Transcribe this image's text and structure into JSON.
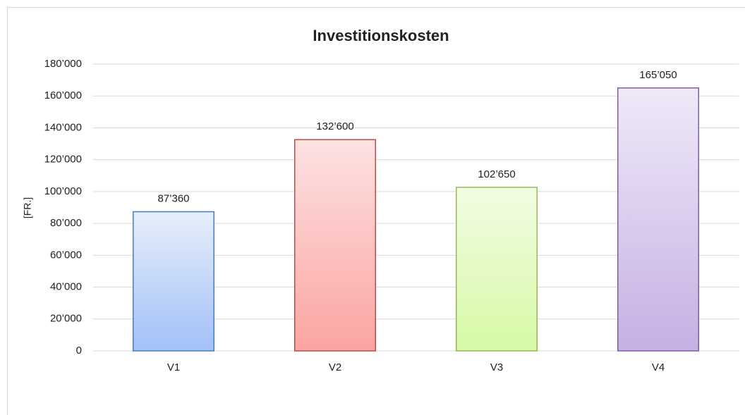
{
  "chart_data": {
    "type": "bar",
    "title": "Investitionskosten",
    "y_label": "[FR.]",
    "categories": [
      "V1",
      "V2",
      "V3",
      "V4"
    ],
    "values": [
      87360,
      132600,
      102650,
      165050
    ],
    "value_labels": [
      "87’360",
      "132’600",
      "102’650",
      "165’050"
    ],
    "colors": [
      "#4a7ebb",
      "#be4b48",
      "#98b954",
      "#7d60a0"
    ],
    "gradients": [
      [
        "#e6eefb",
        "#a3c0f8"
      ],
      [
        "#fde2e2",
        "#fba4a2"
      ],
      [
        "#f2fce4",
        "#d6f9a5"
      ],
      [
        "#efe9f8",
        "#c6b0e4"
      ]
    ],
    "ylim": [
      0,
      180000
    ],
    "yticks": [
      0,
      {
        "value": 20000,
        "label": "20’000"
      },
      {
        "value": 40000,
        "label": "40’000"
      },
      {
        "value": 60000,
        "label": "60’000"
      },
      {
        "value": 80000,
        "label": "80’000"
      },
      {
        "value": 100000,
        "label": "100’000"
      },
      {
        "value": 120000,
        "label": "120’000"
      },
      {
        "value": 140000,
        "label": "140’000"
      },
      {
        "value": 160000,
        "label": "160’000"
      },
      {
        "value": 180000,
        "label": "180’000"
      }
    ],
    "grid": true
  }
}
